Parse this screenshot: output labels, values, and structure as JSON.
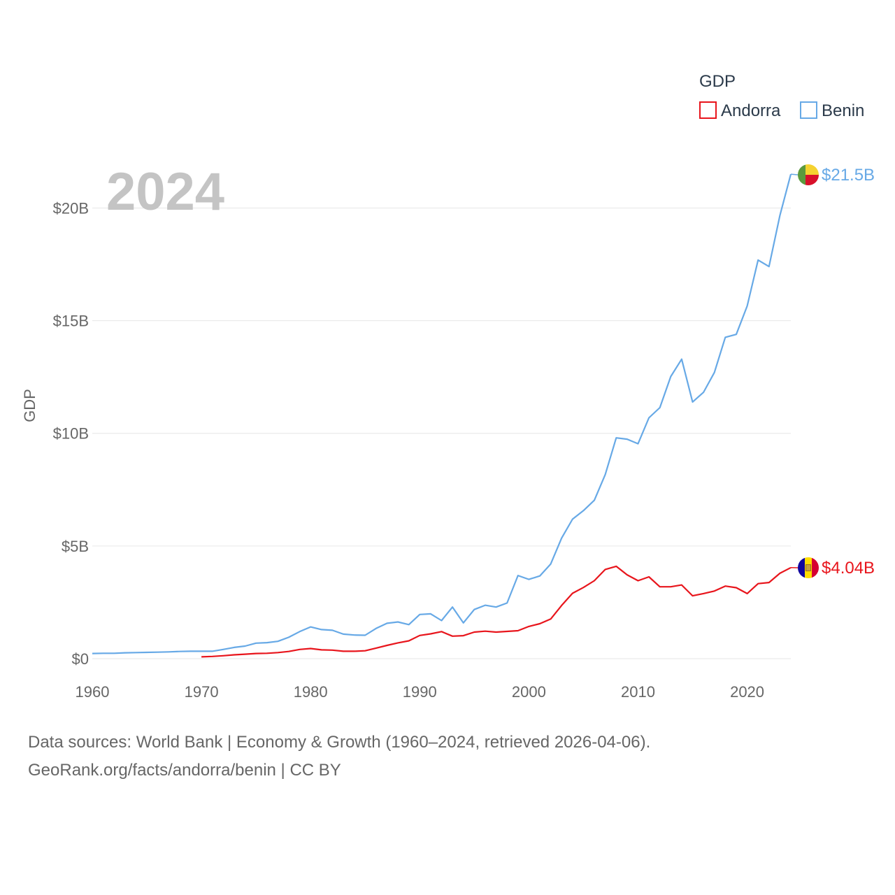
{
  "chart_data": {
    "type": "line",
    "year_label": "2024",
    "ylabel": "GDP",
    "xlim": [
      1960,
      2024
    ],
    "ylim": [
      0,
      22
    ],
    "x_ticks": [
      1960,
      1970,
      1980,
      1990,
      2000,
      2010,
      2020
    ],
    "y_ticks": [
      {
        "value": 0,
        "label": "$0"
      },
      {
        "value": 5,
        "label": "$5B"
      },
      {
        "value": 10,
        "label": "$10B"
      },
      {
        "value": 15,
        "label": "$15B"
      },
      {
        "value": 20,
        "label": "$20B"
      }
    ],
    "grid": true,
    "legend": {
      "title": "GDP",
      "position": "top-right"
    },
    "value_unit": "billion USD",
    "series": [
      {
        "name": "Andorra",
        "color": "#e8151c",
        "end_label": "$4.04B",
        "flag_icon": "andorra-flag-icon",
        "x": [
          1970,
          1971,
          1972,
          1973,
          1974,
          1975,
          1976,
          1977,
          1978,
          1979,
          1980,
          1981,
          1982,
          1983,
          1984,
          1985,
          1986,
          1987,
          1988,
          1989,
          1990,
          1991,
          1992,
          1993,
          1994,
          1995,
          1996,
          1997,
          1998,
          1999,
          2000,
          2001,
          2002,
          2003,
          2004,
          2005,
          2006,
          2007,
          2008,
          2009,
          2010,
          2011,
          2012,
          2013,
          2014,
          2015,
          2016,
          2017,
          2018,
          2019,
          2020,
          2021,
          2022,
          2023,
          2024
        ],
        "values": [
          0.08,
          0.1,
          0.13,
          0.17,
          0.2,
          0.23,
          0.24,
          0.27,
          0.32,
          0.41,
          0.45,
          0.39,
          0.38,
          0.33,
          0.33,
          0.35,
          0.47,
          0.59,
          0.7,
          0.79,
          1.03,
          1.1,
          1.2,
          1.0,
          1.02,
          1.18,
          1.22,
          1.18,
          1.21,
          1.24,
          1.43,
          1.55,
          1.76,
          2.36,
          2.9,
          3.16,
          3.46,
          3.96,
          4.1,
          3.72,
          3.46,
          3.63,
          3.19,
          3.19,
          3.27,
          2.79,
          2.89,
          3.0,
          3.22,
          3.15,
          2.89,
          3.33,
          3.38,
          3.79,
          4.04
        ]
      },
      {
        "name": "Benin",
        "color": "#67a9e6",
        "end_label": "$21.5B",
        "flag_icon": "benin-flag-icon",
        "x": [
          1960,
          1961,
          1962,
          1963,
          1964,
          1965,
          1966,
          1967,
          1968,
          1969,
          1970,
          1971,
          1972,
          1973,
          1974,
          1975,
          1976,
          1977,
          1978,
          1979,
          1980,
          1981,
          1982,
          1983,
          1984,
          1985,
          1986,
          1987,
          1988,
          1989,
          1990,
          1991,
          1992,
          1993,
          1994,
          1995,
          1996,
          1997,
          1998,
          1999,
          2000,
          2001,
          2002,
          2003,
          2004,
          2005,
          2006,
          2007,
          2008,
          2009,
          2010,
          2011,
          2012,
          2013,
          2014,
          2015,
          2016,
          2017,
          2018,
          2019,
          2020,
          2021,
          2022,
          2023,
          2024
        ],
        "values": [
          0.23,
          0.24,
          0.24,
          0.26,
          0.27,
          0.28,
          0.29,
          0.3,
          0.32,
          0.33,
          0.33,
          0.33,
          0.41,
          0.5,
          0.56,
          0.69,
          0.71,
          0.77,
          0.95,
          1.2,
          1.41,
          1.29,
          1.26,
          1.09,
          1.05,
          1.04,
          1.34,
          1.57,
          1.63,
          1.51,
          1.96,
          1.99,
          1.69,
          2.29,
          1.59,
          2.18,
          2.37,
          2.29,
          2.47,
          3.69,
          3.52,
          3.67,
          4.2,
          5.35,
          6.19,
          6.57,
          7.03,
          8.17,
          9.8,
          9.74,
          9.54,
          10.69,
          11.14,
          12.52,
          13.29,
          11.39,
          11.82,
          12.7,
          14.26,
          14.39,
          15.65,
          17.69,
          17.4,
          19.67,
          21.5
        ]
      }
    ]
  },
  "footer": {
    "sources_line": "Data sources: World Bank | Economy & Growth (1960–2024, retrieved 2026-04-06).",
    "url_line": "GeoRank.org/facts/andorra/benin | CC BY"
  }
}
